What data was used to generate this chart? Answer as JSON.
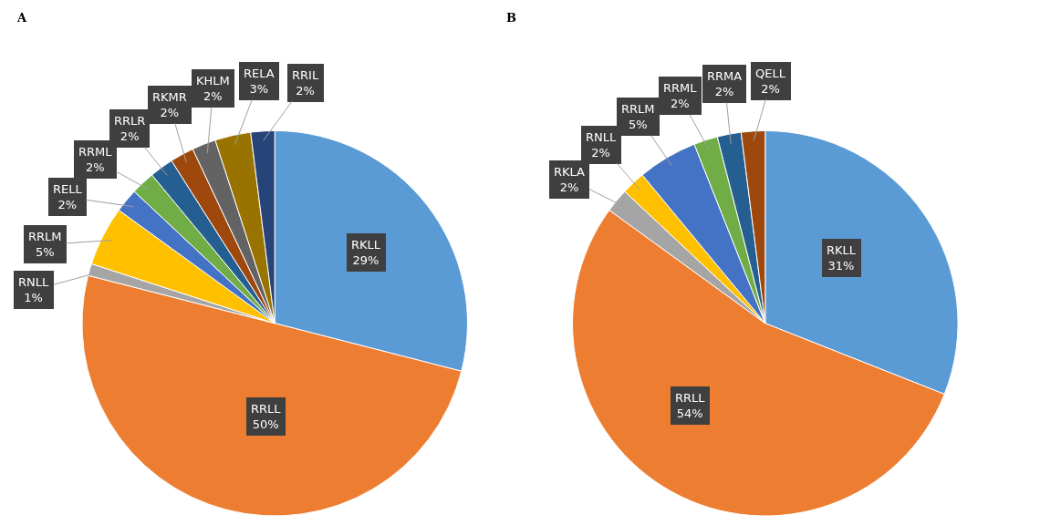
{
  "chart_data": [
    {
      "type": "pie",
      "title": "A",
      "categories": [
        "RKLL",
        "RRLL",
        "RNLL",
        "RRLM",
        "RELL",
        "RRML",
        "RRLR",
        "RKMR",
        "KHLM",
        "RELA",
        "RRIL"
      ],
      "values": [
        29,
        50,
        1,
        5,
        2,
        2,
        2,
        2,
        2,
        3,
        2
      ],
      "value_labels": [
        "29%",
        "50%",
        "1%",
        "5%",
        "2%",
        "2%",
        "2%",
        "2%",
        "2%",
        "3%",
        "2%"
      ],
      "colors": [
        "#5b9bd5",
        "#ed7d31",
        "#a5a5a5",
        "#ffc000",
        "#4472c4",
        "#70ad47",
        "#255e91",
        "#9e480e",
        "#636363",
        "#997300",
        "#264478"
      ]
    },
    {
      "type": "pie",
      "title": "B",
      "categories": [
        "RKLL",
        "RRLL",
        "RKLA",
        "RNLL",
        "RRLM",
        "RRML",
        "RRMA",
        "QELL"
      ],
      "values": [
        31,
        54,
        2,
        2,
        5,
        2,
        2,
        2
      ],
      "value_labels": [
        "31%",
        "54%",
        "2%",
        "2%",
        "5%",
        "2%",
        "2%",
        "2%"
      ],
      "colors": [
        "#5b9bd5",
        "#ed7d31",
        "#a5a5a5",
        "#ffc000",
        "#4472c4",
        "#70ad47",
        "#255e91",
        "#9e480e"
      ]
    }
  ]
}
